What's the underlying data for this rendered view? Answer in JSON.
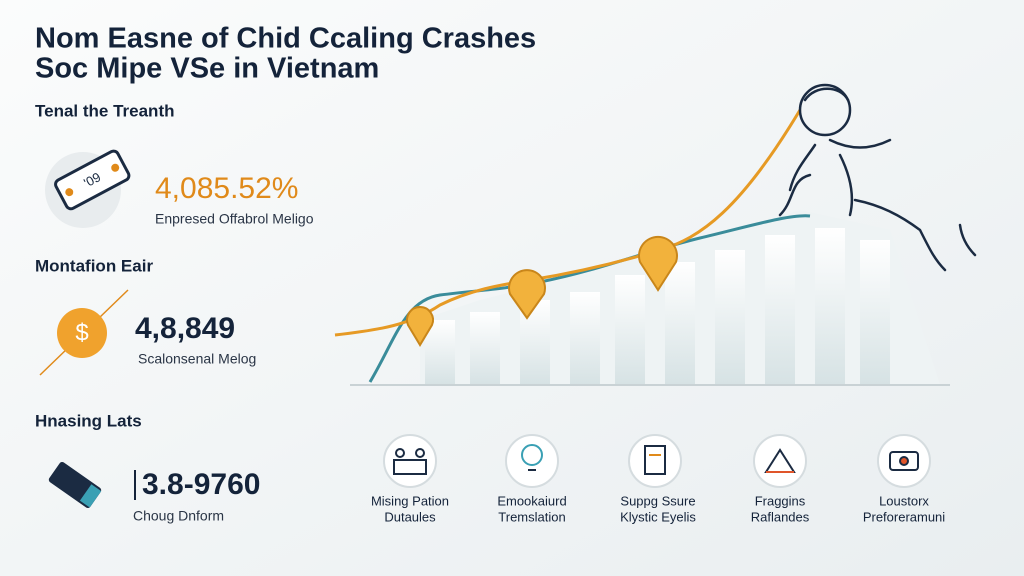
{
  "header": {
    "title": [
      "Nom Easne of Chid Ccaling Crashes",
      "Soc Mipe VSe in Vietnam"
    ]
  },
  "sections": [
    {
      "heading": "Tenal the Treanth",
      "icon_text": "'09",
      "value": "4,085.52%",
      "caption": "Enpresed Offabrol Meligo"
    },
    {
      "heading": "Montafion Eair",
      "value": "4,8,849",
      "caption": "Scalonsenal Melog"
    },
    {
      "heading": "Hnasing Lats",
      "value": "3.8-9760",
      "caption": "Choug Dnform"
    }
  ],
  "features": [
    [
      "Mising Pation",
      "Dutaules"
    ],
    [
      "Emookaiurd",
      "Tremslation"
    ],
    [
      "Suppg Ssure",
      "Klystic Eyelis"
    ],
    [
      "Fraggins",
      "Raflandes"
    ],
    [
      "Loustorx",
      "Preforeramuni"
    ]
  ]
}
